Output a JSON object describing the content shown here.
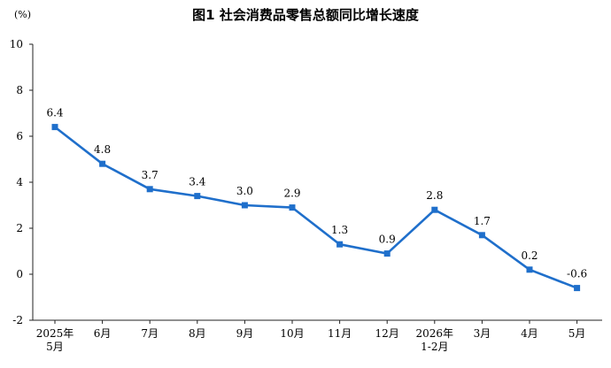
{
  "chart_data": {
    "type": "line",
    "title": "图1  社会消费品零售总额同比增长速度",
    "ylabel": "(%)",
    "xlabel": "",
    "ylim": [
      -2,
      10
    ],
    "yticks": [
      -2,
      0,
      2,
      4,
      6,
      8,
      10
    ],
    "grid": false,
    "categories": [
      [
        "2025年",
        "5月"
      ],
      [
        "6月"
      ],
      [
        "7月"
      ],
      [
        "8月"
      ],
      [
        "9月"
      ],
      [
        "10月"
      ],
      [
        "11月"
      ],
      [
        "12月"
      ],
      [
        "2026年",
        "1-2月"
      ],
      [
        "3月"
      ],
      [
        "4月"
      ],
      [
        "5月"
      ]
    ],
    "series": [
      {
        "color": "#1f6fcb",
        "marker": "square",
        "values": [
          6.4,
          4.8,
          3.7,
          3.4,
          3.0,
          2.9,
          1.3,
          0.9,
          2.8,
          1.7,
          0.2,
          -0.6
        ],
        "labels": [
          "6.4",
          "4.8",
          "3.7",
          "3.4",
          "3.0",
          "2.9",
          "1.3",
          "0.9",
          "2.8",
          "1.7",
          "0.2",
          "-0.6"
        ]
      }
    ]
  }
}
